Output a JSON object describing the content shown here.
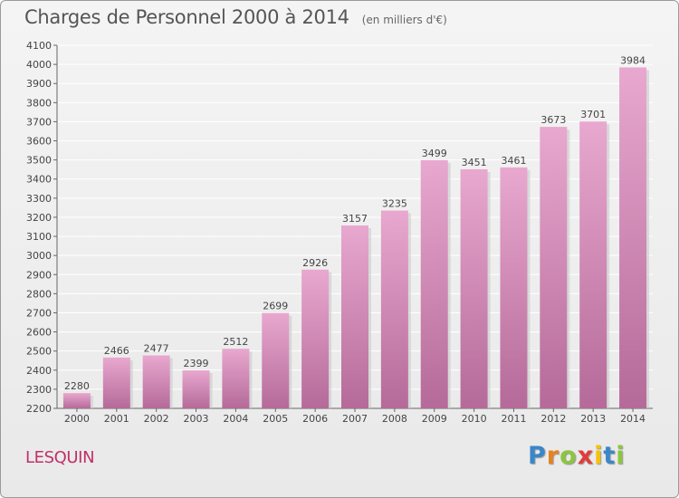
{
  "title": "Charges de Personnel 2000 à 2014",
  "subtitle": "(en milliers d'€)",
  "commune": "LESQUIN",
  "brand": {
    "letters": [
      "P",
      "r",
      "o",
      "x",
      "i",
      "t",
      "i"
    ],
    "colors": [
      "#3a86c8",
      "#e8821e",
      "#8cc63f",
      "#e23b3b",
      "#f4c20d",
      "#3a86c8",
      "#8cc63f"
    ]
  },
  "colors": {
    "bar_top": "#e8a8cf",
    "bar_bottom": "#b56a99",
    "bar_shadow": "#c9c9c9",
    "grid": "#ffffff"
  },
  "chart_data": {
    "type": "bar",
    "title": "Charges de Personnel 2000 à 2014",
    "subtitle": "(en milliers d'€)",
    "categories": [
      "2000",
      "2001",
      "2002",
      "2003",
      "2004",
      "2005",
      "2006",
      "2007",
      "2008",
      "2009",
      "2010",
      "2011",
      "2012",
      "2013",
      "2014"
    ],
    "values": [
      2280,
      2466,
      2477,
      2399,
      2512,
      2699,
      2926,
      3157,
      3235,
      3499,
      3451,
      3461,
      3673,
      3701,
      3984
    ],
    "ylim": [
      2200,
      4100
    ],
    "ytick_step": 100,
    "grid": true,
    "data_labels": true
  }
}
